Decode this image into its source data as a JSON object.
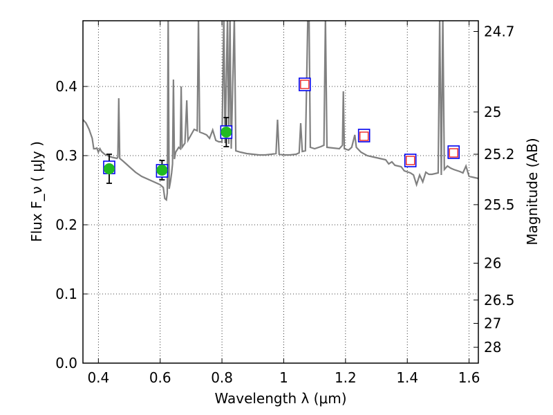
{
  "chart_data": {
    "type": "scatter",
    "xlabel": "Wavelength  λ (μm)",
    "ylabel": "Flux  F_ν  ( μJy )",
    "ylabel_right": "Magnitude (AB)",
    "xlim": [
      0.35,
      1.63
    ],
    "ylim": [
      0.0,
      0.495
    ],
    "grid": true,
    "colors": {
      "spectrum": "#808080",
      "observed_fill": "#22bb22",
      "model_box": "#0000ee",
      "predicted_box": "#ee2222",
      "errorbar": "#000000"
    },
    "x_ticks": [
      {
        "value": 0.4,
        "label": "0.4"
      },
      {
        "value": 0.6,
        "label": "0.6"
      },
      {
        "value": 0.8,
        "label": "0.8"
      },
      {
        "value": 1.0,
        "label": "1"
      },
      {
        "value": 1.2,
        "label": "1.2"
      },
      {
        "value": 1.4,
        "label": "1.4"
      },
      {
        "value": 1.6,
        "label": "1.6"
      }
    ],
    "y_ticks": [
      {
        "value": 0.0,
        "label": "0.0"
      },
      {
        "value": 0.1,
        "label": "0.1"
      },
      {
        "value": 0.2,
        "label": "0.2"
      },
      {
        "value": 0.3,
        "label": "0.3"
      },
      {
        "value": 0.4,
        "label": "0.4"
      }
    ],
    "right_ticks": [
      {
        "flux": 0.4795,
        "label": "24.7"
      },
      {
        "flux": 0.3631,
        "label": "25"
      },
      {
        "flux": 0.302,
        "label": "25.2"
      },
      {
        "flux": 0.2291,
        "label": "25.5"
      },
      {
        "flux": 0.1445,
        "label": "26"
      },
      {
        "flux": 0.0912,
        "label": "26.5"
      },
      {
        "flux": 0.0575,
        "label": "27"
      },
      {
        "flux": 0.0229,
        "label": "28"
      }
    ],
    "observed_points": [
      {
        "x": 0.435,
        "y": 0.281,
        "err": 0.021
      },
      {
        "x": 0.606,
        "y": 0.279,
        "err": 0.014
      },
      {
        "x": 0.814,
        "y": 0.334,
        "err": 0.021
      }
    ],
    "model_boxes": [
      {
        "x": 0.435,
        "y": 0.283
      },
      {
        "x": 0.606,
        "y": 0.278
      },
      {
        "x": 0.814,
        "y": 0.334
      },
      {
        "x": 1.068,
        "y": 0.403
      },
      {
        "x": 1.26,
        "y": 0.329
      },
      {
        "x": 1.41,
        "y": 0.293
      },
      {
        "x": 1.55,
        "y": 0.305
      }
    ],
    "predicted_points": [
      {
        "x": 1.068,
        "y": 0.403
      },
      {
        "x": 1.26,
        "y": 0.328
      },
      {
        "x": 1.41,
        "y": 0.293
      },
      {
        "x": 1.55,
        "y": 0.304
      }
    ],
    "spectrum": [
      [
        0.35,
        0.352
      ],
      [
        0.36,
        0.347
      ],
      [
        0.37,
        0.338
      ],
      [
        0.38,
        0.325
      ],
      [
        0.385,
        0.31
      ],
      [
        0.39,
        0.31
      ],
      [
        0.395,
        0.311
      ],
      [
        0.4,
        0.305
      ],
      [
        0.405,
        0.31
      ],
      [
        0.41,
        0.306
      ],
      [
        0.42,
        0.302
      ],
      [
        0.43,
        0.3
      ],
      [
        0.44,
        0.298
      ],
      [
        0.45,
        0.297
      ],
      [
        0.46,
        0.296
      ],
      [
        0.463,
        0.298
      ],
      [
        0.466,
        0.383
      ],
      [
        0.469,
        0.296
      ],
      [
        0.48,
        0.292
      ],
      [
        0.49,
        0.288
      ],
      [
        0.5,
        0.284
      ],
      [
        0.52,
        0.276
      ],
      [
        0.54,
        0.27
      ],
      [
        0.56,
        0.266
      ],
      [
        0.58,
        0.262
      ],
      [
        0.6,
        0.258
      ],
      [
        0.61,
        0.254
      ],
      [
        0.615,
        0.238
      ],
      [
        0.62,
        0.236
      ],
      [
        0.623,
        0.246
      ],
      [
        0.626,
        0.5
      ],
      [
        0.629,
        0.252
      ],
      [
        0.633,
        0.262
      ],
      [
        0.637,
        0.275
      ],
      [
        0.64,
        0.288
      ],
      [
        0.643,
        0.41
      ],
      [
        0.646,
        0.295
      ],
      [
        0.65,
        0.305
      ],
      [
        0.66,
        0.312
      ],
      [
        0.665,
        0.31
      ],
      [
        0.668,
        0.4
      ],
      [
        0.671,
        0.312
      ],
      [
        0.68,
        0.318
      ],
      [
        0.686,
        0.38
      ],
      [
        0.69,
        0.322
      ],
      [
        0.7,
        0.33
      ],
      [
        0.71,
        0.338
      ],
      [
        0.72,
        0.336
      ],
      [
        0.724,
        0.5
      ],
      [
        0.728,
        0.334
      ],
      [
        0.74,
        0.332
      ],
      [
        0.75,
        0.33
      ],
      [
        0.76,
        0.325
      ],
      [
        0.77,
        0.337
      ],
      [
        0.78,
        0.322
      ],
      [
        0.79,
        0.32
      ],
      [
        0.8,
        0.32
      ],
      [
        0.806,
        0.5
      ],
      [
        0.81,
        0.318
      ],
      [
        0.818,
        0.5
      ],
      [
        0.822,
        0.317
      ],
      [
        0.826,
        0.5
      ],
      [
        0.83,
        0.31
      ],
      [
        0.84,
        0.5
      ],
      [
        0.845,
        0.307
      ],
      [
        0.86,
        0.305
      ],
      [
        0.88,
        0.303
      ],
      [
        0.9,
        0.302
      ],
      [
        0.92,
        0.301
      ],
      [
        0.94,
        0.301
      ],
      [
        0.96,
        0.302
      ],
      [
        0.975,
        0.303
      ],
      [
        0.98,
        0.352
      ],
      [
        0.985,
        0.302
      ],
      [
        1.0,
        0.301
      ],
      [
        1.02,
        0.301
      ],
      [
        1.04,
        0.302
      ],
      [
        1.05,
        0.304
      ],
      [
        1.055,
        0.347
      ],
      [
        1.06,
        0.306
      ],
      [
        1.07,
        0.307
      ],
      [
        1.078,
        0.5
      ],
      [
        1.082,
        0.5
      ],
      [
        1.086,
        0.312
      ],
      [
        1.1,
        0.31
      ],
      [
        1.12,
        0.313
      ],
      [
        1.13,
        0.315
      ],
      [
        1.135,
        0.5
      ],
      [
        1.14,
        0.312
      ],
      [
        1.16,
        0.311
      ],
      [
        1.18,
        0.31
      ],
      [
        1.19,
        0.315
      ],
      [
        1.193,
        0.393
      ],
      [
        1.196,
        0.31
      ],
      [
        1.21,
        0.308
      ],
      [
        1.22,
        0.312
      ],
      [
        1.23,
        0.33
      ],
      [
        1.235,
        0.312
      ],
      [
        1.25,
        0.305
      ],
      [
        1.27,
        0.3
      ],
      [
        1.29,
        0.298
      ],
      [
        1.31,
        0.296
      ],
      [
        1.33,
        0.294
      ],
      [
        1.34,
        0.288
      ],
      [
        1.35,
        0.291
      ],
      [
        1.36,
        0.286
      ],
      [
        1.38,
        0.284
      ],
      [
        1.39,
        0.278
      ],
      [
        1.41,
        0.275
      ],
      [
        1.42,
        0.272
      ],
      [
        1.43,
        0.258
      ],
      [
        1.44,
        0.272
      ],
      [
        1.45,
        0.262
      ],
      [
        1.46,
        0.276
      ],
      [
        1.47,
        0.273
      ],
      [
        1.48,
        0.273
      ],
      [
        1.5,
        0.275
      ],
      [
        1.505,
        0.5
      ],
      [
        1.51,
        0.272
      ],
      [
        1.515,
        0.5
      ],
      [
        1.52,
        0.28
      ],
      [
        1.53,
        0.285
      ],
      [
        1.54,
        0.282
      ],
      [
        1.55,
        0.28
      ],
      [
        1.57,
        0.277
      ],
      [
        1.58,
        0.275
      ],
      [
        1.59,
        0.285
      ],
      [
        1.6,
        0.27
      ],
      [
        1.62,
        0.268
      ],
      [
        1.63,
        0.267
      ]
    ]
  }
}
